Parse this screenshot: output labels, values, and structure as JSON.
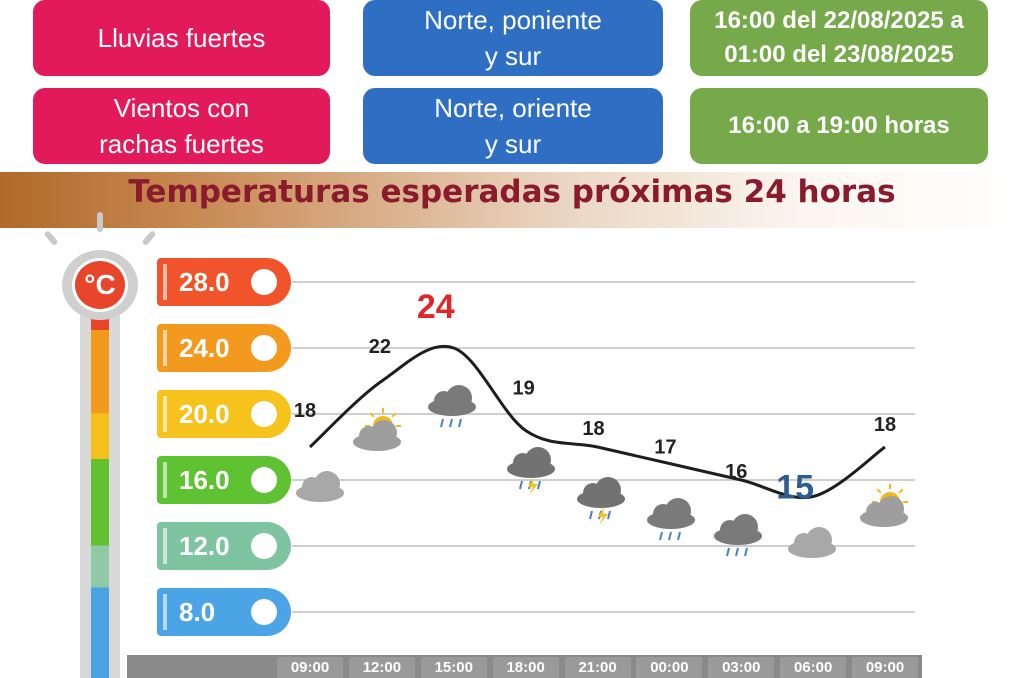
{
  "alerts": {
    "row1": {
      "phenomenon": "Lluvias fuertes",
      "zones": "Norte, poniente\ny sur",
      "period": "16:00 del 22/08/2025 a\n01:00 del 23/08/2025"
    },
    "row2": {
      "phenomenon": "Vientos con\nrachas fuertes",
      "zones": "Norte, oriente\ny sur",
      "period": "16:00 a 19:00 horas"
    }
  },
  "colors": {
    "phenomenon": "#e2195b",
    "zones": "#2f6fc3",
    "period": "#75a94a",
    "title": "#8a1b2c",
    "max_label": "#e0262b",
    "min_label": "#2e5d8f"
  },
  "thermometer_unit": "°C",
  "chart_data": {
    "type": "line",
    "title": "Temperaturas esperadas próximas 24 horas",
    "x": [
      "09:00",
      "12:00",
      "15:00",
      "18:00",
      "21:00",
      "00:00",
      "03:00",
      "06:00",
      "09:00"
    ],
    "series": [
      {
        "values": [
          18,
          22,
          24,
          19,
          18,
          17,
          16,
          15,
          18
        ]
      }
    ],
    "value_labels": [
      "18",
      "22",
      "24",
      "19",
      "18",
      "17",
      "16",
      "15",
      "18"
    ],
    "highlight": {
      "max_index": 2,
      "min_index": 7
    },
    "y_ticks": [
      {
        "label": "28.0",
        "value": 28,
        "color": "#f1542b"
      },
      {
        "label": "24.0",
        "value": 24,
        "color": "#f39a1e"
      },
      {
        "label": "20.0",
        "value": 20,
        "color": "#f5c31c"
      },
      {
        "label": "16.0",
        "value": 16,
        "color": "#5fc233"
      },
      {
        "label": "12.0",
        "value": 12,
        "color": "#7fc4a0"
      },
      {
        "label": "8.0",
        "value": 8,
        "color": "#4ba4e6"
      }
    ],
    "ylim": [
      6,
      30
    ],
    "grid": true,
    "weather_icons": [
      "cloudy-icon",
      "partly-sunny-cloud-icon",
      "rain-cloud-icon",
      "storm-cloud-icon",
      "storm-cloud-icon",
      "rain-cloud-icon",
      "rain-cloud-icon",
      "cloudy-icon",
      "partly-sunny-cloud-icon"
    ]
  }
}
